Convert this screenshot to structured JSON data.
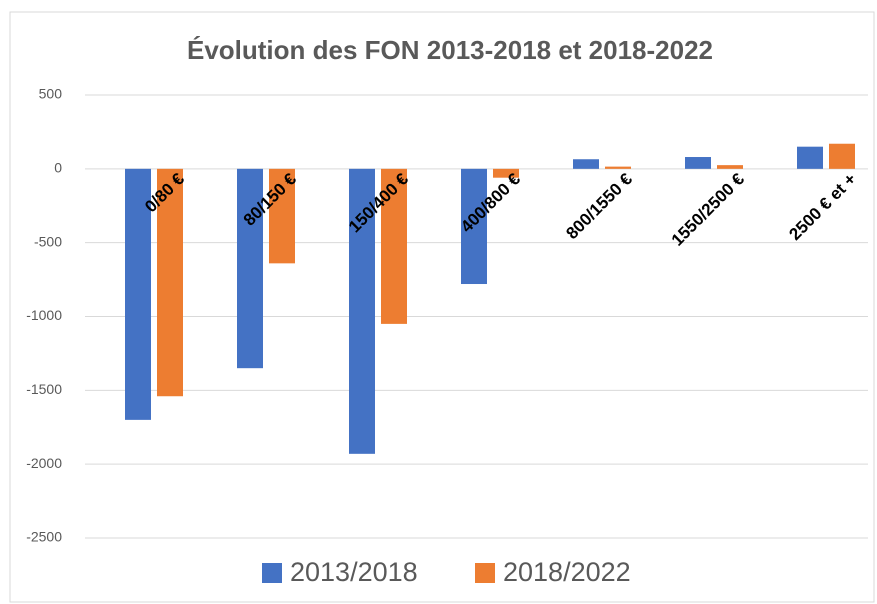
{
  "chart_data": {
    "type": "bar",
    "title": "Évolution des FON 2013-2018 et 2018-2022",
    "categories": [
      "0/80 €",
      "80/150 €",
      "150/400 €",
      "400/800 €",
      "800/1550 €",
      "1550/2500 €",
      "2500 € et +"
    ],
    "series": [
      {
        "name": "2013/2018",
        "color": "#4472c4",
        "values": [
          -1700,
          -1350,
          -1930,
          -780,
          65,
          80,
          150
        ]
      },
      {
        "name": "2018/2022",
        "color": "#ed7d31",
        "values": [
          -1540,
          -640,
          -1050,
          -60,
          15,
          25,
          170
        ]
      }
    ],
    "ylim": [
      -2500,
      500
    ],
    "yticks": [
      -2500,
      -2000,
      -1500,
      -1000,
      -500,
      0,
      500
    ],
    "grid": true,
    "legend": "bottom"
  }
}
